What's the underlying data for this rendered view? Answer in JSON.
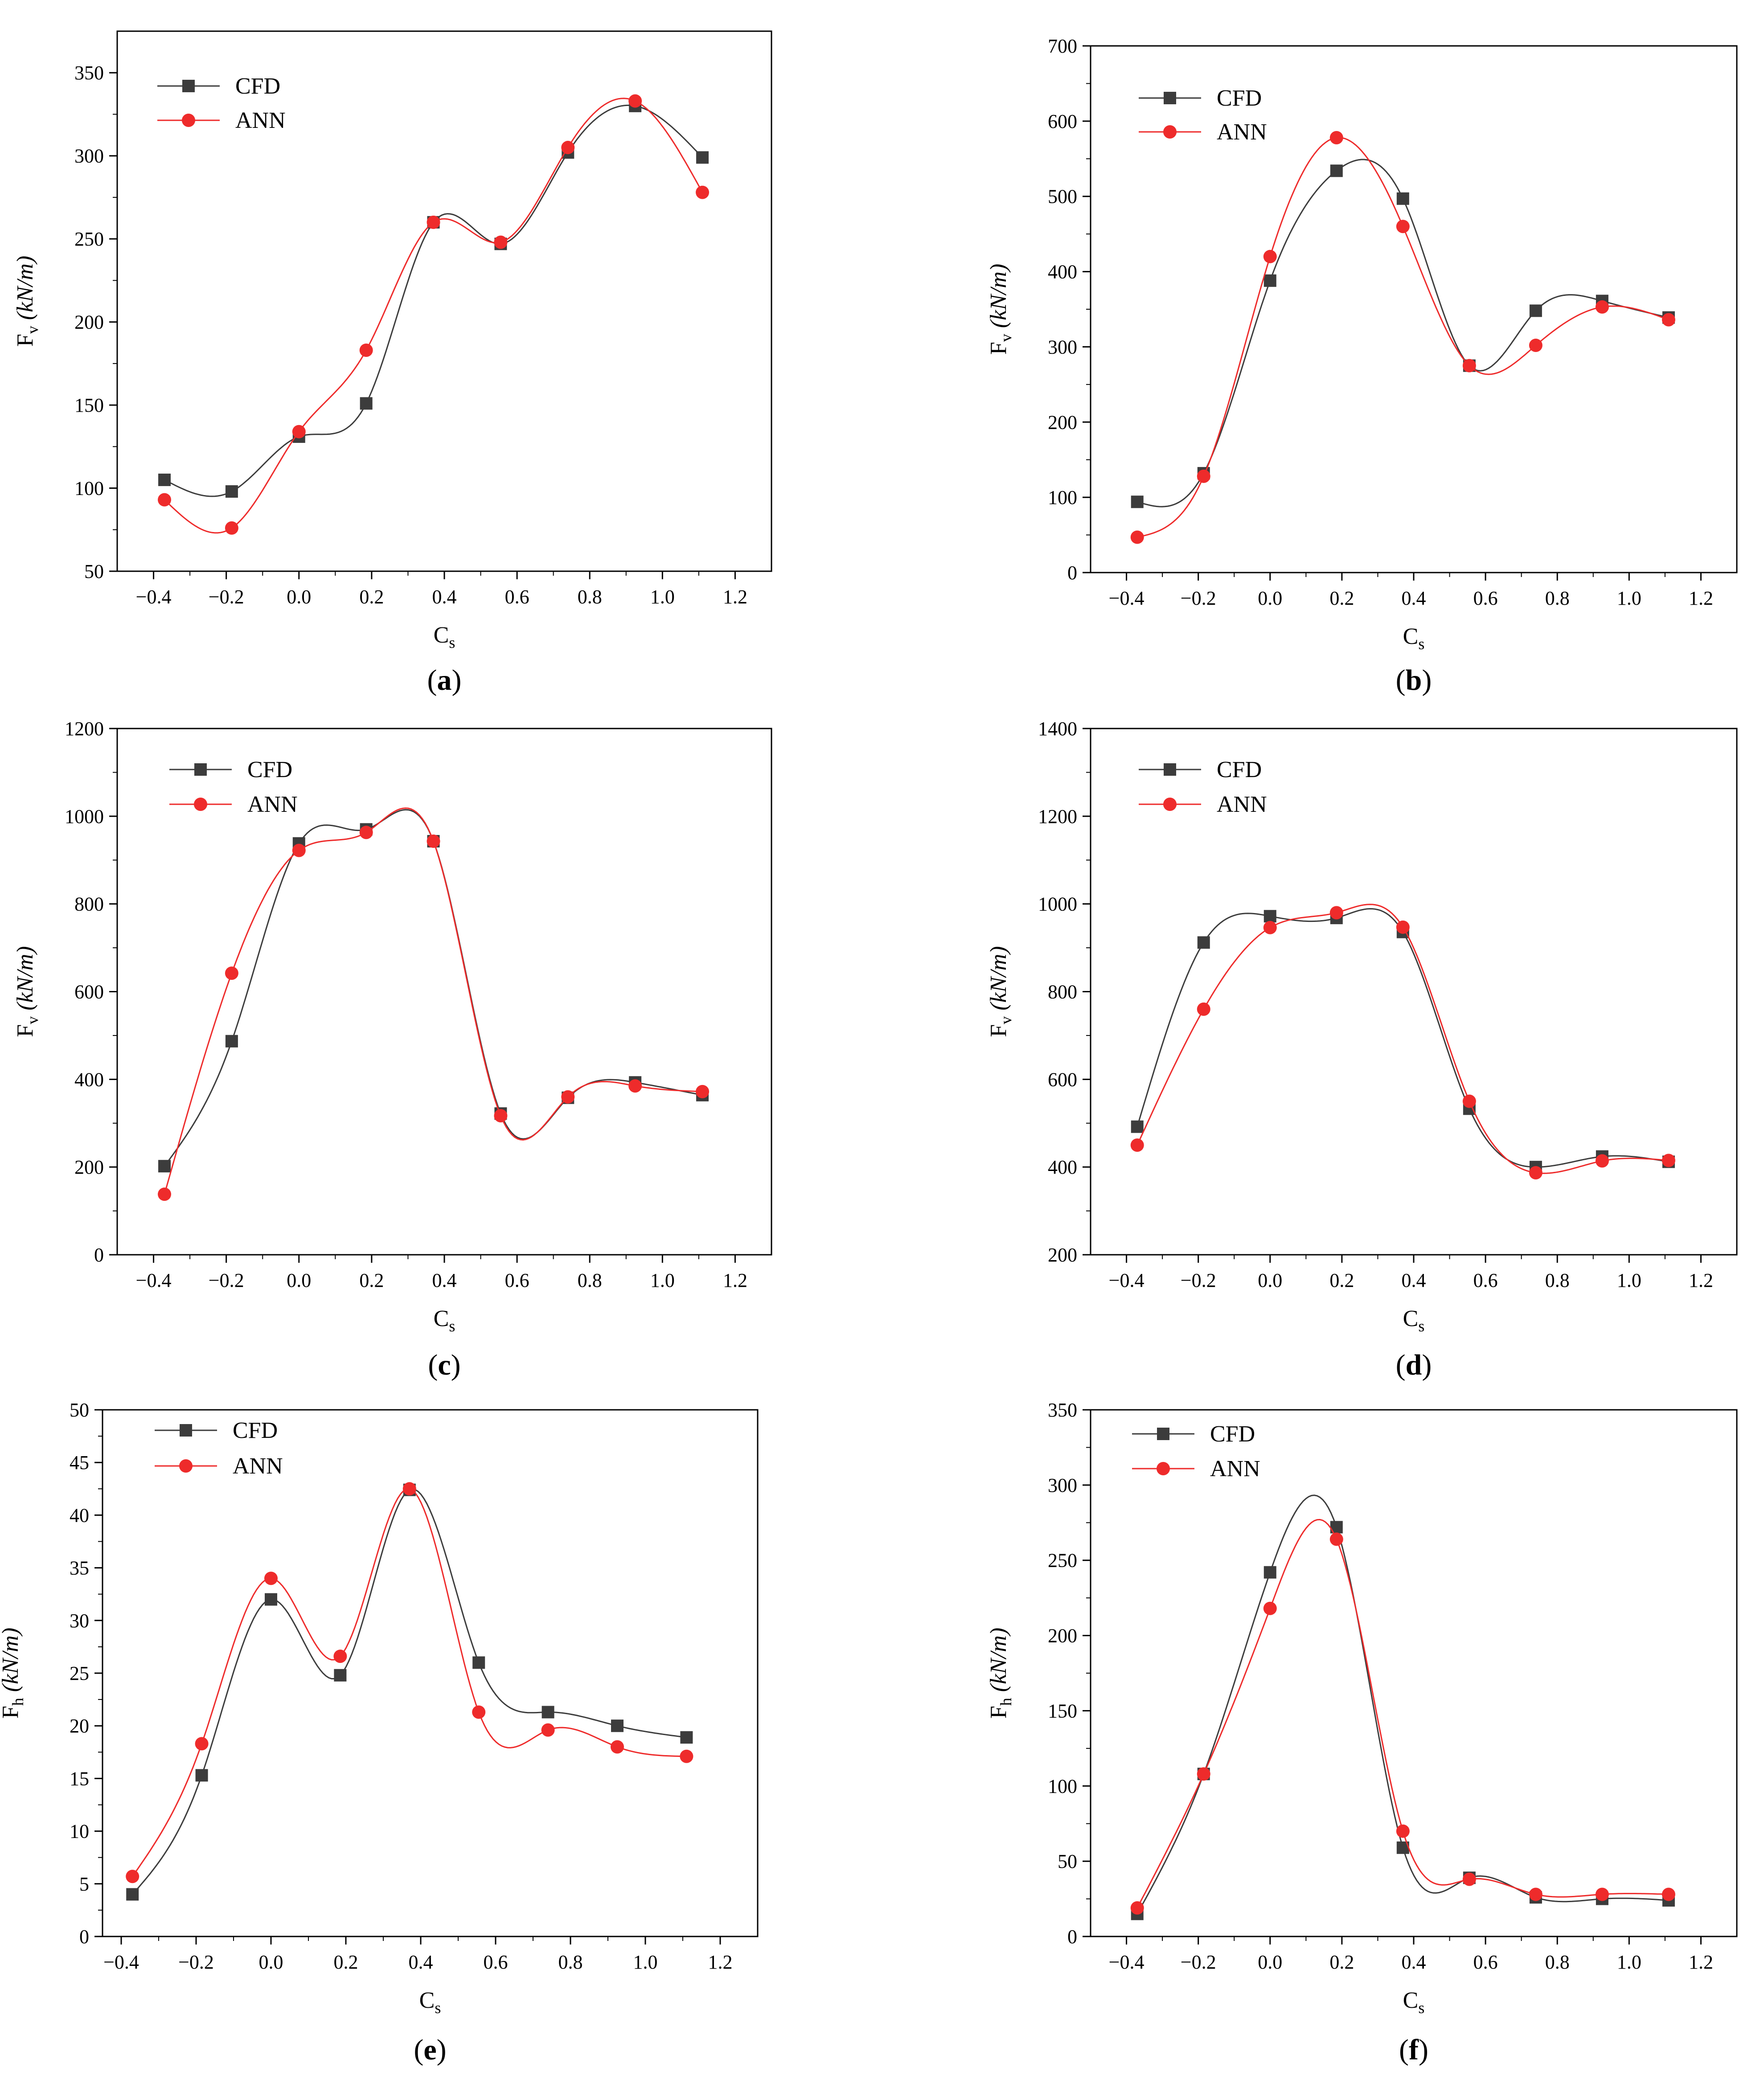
{
  "colors": {
    "cfd": "#3c3c3c",
    "ann": "#ee2b2b",
    "axis": "#000000"
  },
  "series_names": [
    "CFD",
    "ANN"
  ],
  "chart_data": [
    {
      "panel": "(a)",
      "label_letter": "a",
      "type": "line",
      "xlabel": "C",
      "xlabel_sub": "s",
      "ylabel_base": "F",
      "ylabel_sub": "v",
      "ylabel_unit": "(kN/m)",
      "xlim": [
        -0.5,
        1.3
      ],
      "ylim": [
        50,
        375
      ],
      "xticks": [
        -0.4,
        -0.2,
        0.0,
        0.2,
        0.4,
        0.6,
        0.8,
        1.0,
        1.2
      ],
      "xtick_labels": [
        "−0.4",
        "−0.2",
        "0.0",
        "0.2",
        "0.4",
        "0.6",
        "0.8",
        "1.0",
        "1.2"
      ],
      "yticks": [
        50,
        100,
        150,
        200,
        250,
        300,
        350
      ],
      "ytick_labels": [
        "50",
        "100",
        "150",
        "200",
        "250",
        "300",
        "350"
      ],
      "x": [
        -0.37,
        -0.185,
        0.0,
        0.185,
        0.37,
        0.555,
        0.74,
        0.925,
        1.11
      ],
      "series": [
        {
          "name": "CFD",
          "values": [
            105,
            98,
            131,
            151,
            260,
            247,
            302,
            330,
            299
          ]
        },
        {
          "name": "ANN",
          "values": [
            93,
            76,
            134,
            183,
            260,
            248,
            305,
            333,
            278
          ]
        }
      ],
      "legend": "top-left"
    },
    {
      "panel": "(b)",
      "label_letter": "b",
      "type": "line",
      "xlabel": "C",
      "xlabel_sub": "s",
      "ylabel_base": "F",
      "ylabel_sub": "v",
      "ylabel_unit": "(kN/m)",
      "xlim": [
        -0.5,
        1.3
      ],
      "ylim": [
        0,
        700
      ],
      "xticks": [
        -0.4,
        -0.2,
        0.0,
        0.2,
        0.4,
        0.6,
        0.8,
        1.0,
        1.2
      ],
      "xtick_labels": [
        "−0.4",
        "−0.2",
        "0.0",
        "0.2",
        "0.4",
        "0.6",
        "0.8",
        "1.0",
        "1.2"
      ],
      "yticks": [
        0,
        100,
        200,
        300,
        400,
        500,
        600,
        700
      ],
      "ytick_labels": [
        "0",
        "100",
        "200",
        "300",
        "400",
        "500",
        "600",
        "700"
      ],
      "x": [
        -0.37,
        -0.185,
        0.0,
        0.185,
        0.37,
        0.555,
        0.74,
        0.925,
        1.11
      ],
      "series": [
        {
          "name": "CFD",
          "values": [
            94,
            132,
            388,
            534,
            497,
            275,
            348,
            361,
            339
          ]
        },
        {
          "name": "ANN",
          "values": [
            47,
            128,
            420,
            578,
            460,
            275,
            302,
            353,
            336
          ]
        }
      ],
      "legend": "top-left"
    },
    {
      "panel": "(c)",
      "label_letter": "c",
      "type": "line",
      "xlabel": "C",
      "xlabel_sub": "s",
      "ylabel_base": "F",
      "ylabel_sub": "v",
      "ylabel_unit": "(kN/m)",
      "xlim": [
        -0.5,
        1.3
      ],
      "ylim": [
        0,
        1200
      ],
      "xticks": [
        -0.4,
        -0.2,
        0.0,
        0.2,
        0.4,
        0.6,
        0.8,
        1.0,
        1.2
      ],
      "xtick_labels": [
        "−0.4",
        "−0.2",
        "0.0",
        "0.2",
        "0.4",
        "0.6",
        "0.8",
        "1.0",
        "1.2"
      ],
      "yticks": [
        0,
        200,
        400,
        600,
        800,
        1000,
        1200
      ],
      "ytick_labels": [
        "0",
        "200",
        "400",
        "600",
        "800",
        "1000",
        "1200"
      ],
      "x": [
        -0.37,
        -0.185,
        0.0,
        0.185,
        0.37,
        0.555,
        0.74,
        0.925,
        1.11
      ],
      "series": [
        {
          "name": "CFD",
          "values": [
            202,
            487,
            938,
            970,
            943,
            322,
            358,
            393,
            364
          ]
        },
        {
          "name": "ANN",
          "values": [
            138,
            642,
            922,
            963,
            943,
            317,
            360,
            385,
            372
          ]
        }
      ],
      "legend": "top-left"
    },
    {
      "panel": "(d)",
      "label_letter": "d",
      "type": "line",
      "xlabel": "C",
      "xlabel_sub": "s",
      "ylabel_base": "F",
      "ylabel_sub": "v",
      "ylabel_unit": "(kN/m)",
      "xlim": [
        -0.5,
        1.3
      ],
      "ylim": [
        200,
        1400
      ],
      "xticks": [
        -0.4,
        -0.2,
        0.0,
        0.2,
        0.4,
        0.6,
        0.8,
        1.0,
        1.2
      ],
      "xtick_labels": [
        "−0.4",
        "−0.2",
        "0.0",
        "0.2",
        "0.4",
        "0.6",
        "0.8",
        "1.0",
        "1.2"
      ],
      "yticks": [
        200,
        400,
        600,
        800,
        1000,
        1200,
        1400
      ],
      "ytick_labels": [
        "200",
        "400",
        "600",
        "800",
        "1000",
        "1200",
        "1400"
      ],
      "x": [
        -0.37,
        -0.185,
        0.0,
        0.185,
        0.37,
        0.555,
        0.74,
        0.925,
        1.11
      ],
      "series": [
        {
          "name": "CFD",
          "values": [
            492,
            912,
            972,
            968,
            936,
            533,
            400,
            424,
            412
          ]
        },
        {
          "name": "ANN",
          "values": [
            450,
            760,
            946,
            980,
            947,
            550,
            387,
            414,
            415
          ]
        }
      ],
      "legend": "top-left"
    },
    {
      "panel": "(e)",
      "label_letter": "e",
      "type": "line",
      "xlabel": "C",
      "xlabel_sub": "s",
      "ylabel_base": "F",
      "ylabel_sub": "h",
      "ylabel_unit": "(kN/m)",
      "xlim": [
        -0.45,
        1.3
      ],
      "ylim": [
        0,
        50
      ],
      "xticks": [
        -0.4,
        -0.2,
        0.0,
        0.2,
        0.4,
        0.6,
        0.8,
        1.0,
        1.2
      ],
      "xtick_labels": [
        "−0.4",
        "−0.2",
        "0.0",
        "0.2",
        "0.4",
        "0.6",
        "0.8",
        "1.0",
        "1.2"
      ],
      "yticks": [
        0,
        5,
        10,
        15,
        20,
        25,
        30,
        35,
        40,
        45,
        50
      ],
      "ytick_labels": [
        "0",
        "5",
        "10",
        "15",
        "20",
        "25",
        "30",
        "35",
        "40",
        "45",
        "50"
      ],
      "x": [
        -0.37,
        -0.185,
        0.0,
        0.185,
        0.37,
        0.555,
        0.74,
        0.925,
        1.11
      ],
      "series": [
        {
          "name": "CFD",
          "values": [
            4.0,
            15.3,
            32.0,
            24.8,
            42.4,
            26.0,
            21.3,
            20.0,
            18.9
          ]
        },
        {
          "name": "ANN",
          "values": [
            5.7,
            18.3,
            34.0,
            26.6,
            42.5,
            21.3,
            19.6,
            18.0,
            17.1
          ]
        }
      ],
      "legend": "top-left"
    },
    {
      "panel": "(f)",
      "label_letter": "f",
      "type": "line",
      "xlabel": "C",
      "xlabel_sub": "s",
      "ylabel_base": "F",
      "ylabel_sub": "h",
      "ylabel_unit": "(kN/m)",
      "xlim": [
        -0.5,
        1.3
      ],
      "ylim": [
        0,
        350
      ],
      "xticks": [
        -0.4,
        -0.2,
        0.0,
        0.2,
        0.4,
        0.6,
        0.8,
        1.0,
        1.2
      ],
      "xtick_labels": [
        "−0.4",
        "−0.2",
        "0.0",
        "0.2",
        "0.4",
        "0.6",
        "0.8",
        "1.0",
        "1.2"
      ],
      "yticks": [
        0,
        50,
        100,
        150,
        200,
        250,
        300,
        350
      ],
      "ytick_labels": [
        "0",
        "50",
        "100",
        "150",
        "200",
        "250",
        "300",
        "350"
      ],
      "x": [
        -0.37,
        -0.185,
        0.0,
        0.185,
        0.37,
        0.555,
        0.74,
        0.925,
        1.11
      ],
      "series": [
        {
          "name": "CFD",
          "values": [
            15,
            108,
            242,
            272,
            59,
            39,
            26,
            25,
            24
          ]
        },
        {
          "name": "ANN",
          "values": [
            19,
            108,
            218,
            264,
            70,
            38,
            28,
            28,
            28
          ]
        }
      ],
      "legend": "top-left"
    }
  ]
}
